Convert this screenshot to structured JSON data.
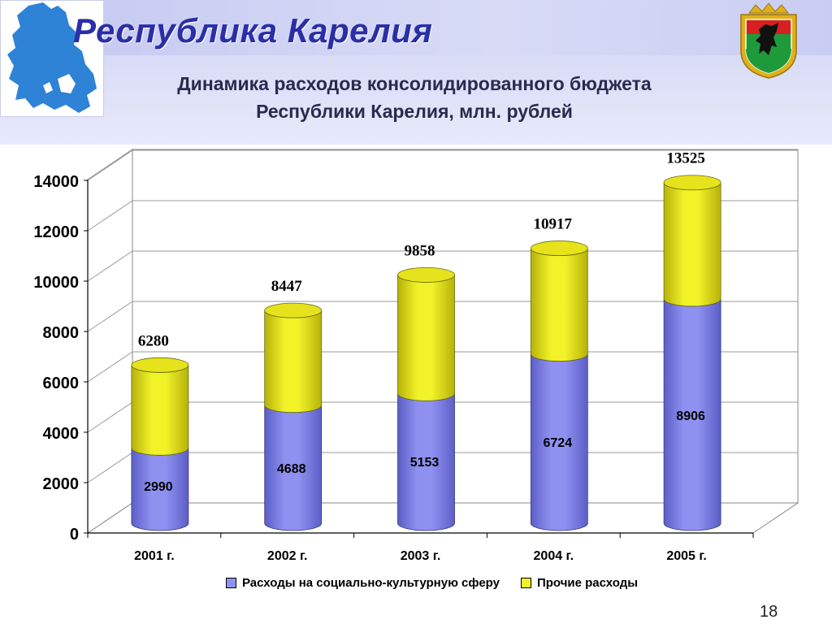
{
  "page": {
    "title": "Республика Карелия",
    "subtitle_line1": "Динамика расходов консолидированного бюджета",
    "subtitle_line2": "Республики Карелия, млн. рублей",
    "page_number": "18"
  },
  "colors": {
    "title": "#2a2fa6",
    "social": "#8f91f0",
    "social_dark": "#5c5ec8",
    "other": "#f2f229",
    "other_dark": "#b6b20a"
  },
  "icons": {
    "map": "karelia-map-icon",
    "emblem": "karelia-coat-of-arms-icon"
  },
  "chart_data": {
    "type": "bar",
    "stacked": true,
    "style": "3d-cylinder",
    "categories": [
      "2001 г.",
      "2002 г.",
      "2003 г.",
      "2004 г.",
      "2005 г."
    ],
    "series": [
      {
        "name": "Расходы на социально-культурную сферу",
        "color": "#8f91f0",
        "values": [
          2990,
          4688,
          5153,
          6724,
          8906
        ]
      },
      {
        "name": "Прочие расходы",
        "color": "#f2f229",
        "values": [
          3290,
          3759,
          4705,
          4193,
          4619
        ]
      }
    ],
    "segment_labels": [
      "2990",
      "4688",
      "5153",
      "6724",
      "8906"
    ],
    "total_labels": [
      "6280",
      "8447",
      "9858",
      "10917",
      "13525"
    ],
    "yticks": [
      "0",
      "2000",
      "4000",
      "6000",
      "8000",
      "10000",
      "12000",
      "14000"
    ],
    "ylim": [
      0,
      14000
    ],
    "grid": true,
    "legend_position": "bottom"
  }
}
